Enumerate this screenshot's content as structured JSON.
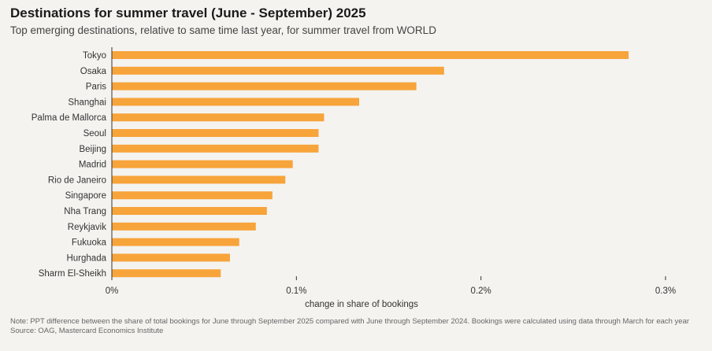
{
  "title": "Destinations for summer travel (June - September) 2025",
  "subtitle": "Top emerging destinations, relative to same time last year, for summer travel from WORLD",
  "note": "Note: PPT difference between the share of total bookings for June through September 2025 compared with June through September 2024. Bookings were calculated using data through March for each year",
  "source": "Source: OAG, Mastercard Economics Institute",
  "colors": {
    "bar": "#f7a43b",
    "axis": "#333333",
    "text": "#333333"
  },
  "chart_data": {
    "type": "bar",
    "orientation": "horizontal",
    "title": "Destinations for summer travel (June - September) 2025",
    "subtitle": "Top emerging destinations, relative to same time last year, for summer travel from WORLD",
    "xlabel": "change in share of bookings",
    "ylabel": "",
    "xlim": [
      0,
      0.3
    ],
    "xticks": [
      0,
      0.1,
      0.2,
      0.3
    ],
    "xtick_labels": [
      "0%",
      "0.1%",
      "0.2%",
      "0.3%"
    ],
    "grid": false,
    "categories": [
      "Tokyo",
      "Osaka",
      "Paris",
      "Shanghai",
      "Palma de Mallorca",
      "Seoul",
      "Beijing",
      "Madrid",
      "Rio de Janeiro",
      "Singapore",
      "Nha Trang",
      "Reykjavik",
      "Fukuoka",
      "Hurghada",
      "Sharm El-Sheikh"
    ],
    "values": [
      0.28,
      0.18,
      0.165,
      0.134,
      0.115,
      0.112,
      0.112,
      0.098,
      0.094,
      0.087,
      0.084,
      0.078,
      0.069,
      0.064,
      0.059
    ]
  }
}
